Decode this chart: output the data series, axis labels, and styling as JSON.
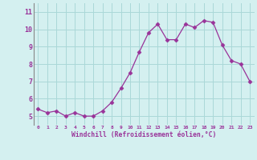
{
  "x": [
    0,
    1,
    2,
    3,
    4,
    5,
    6,
    7,
    8,
    9,
    10,
    11,
    12,
    13,
    14,
    15,
    16,
    17,
    18,
    19,
    20,
    21,
    22,
    23
  ],
  "y": [
    5.4,
    5.2,
    5.3,
    5.0,
    5.2,
    5.0,
    5.0,
    5.3,
    5.8,
    6.6,
    7.5,
    8.7,
    9.8,
    10.3,
    9.4,
    9.4,
    10.3,
    10.1,
    10.5,
    10.4,
    9.1,
    8.2,
    8.0,
    7.0
  ],
  "line_color": "#993399",
  "marker": "D",
  "marker_size": 2.5,
  "bg_color": "#d4f0f0",
  "grid_color": "#aad8d8",
  "xlabel": "Windchill (Refroidissement éolien,°C)",
  "xlabel_color": "#993399",
  "tick_color": "#993399",
  "ylim": [
    4.5,
    11.5
  ],
  "xlim": [
    -0.5,
    23.5
  ],
  "yticks": [
    5,
    6,
    7,
    8,
    9,
    10,
    11
  ],
  "xticks": [
    0,
    1,
    2,
    3,
    4,
    5,
    6,
    7,
    8,
    9,
    10,
    11,
    12,
    13,
    14,
    15,
    16,
    17,
    18,
    19,
    20,
    21,
    22,
    23
  ]
}
